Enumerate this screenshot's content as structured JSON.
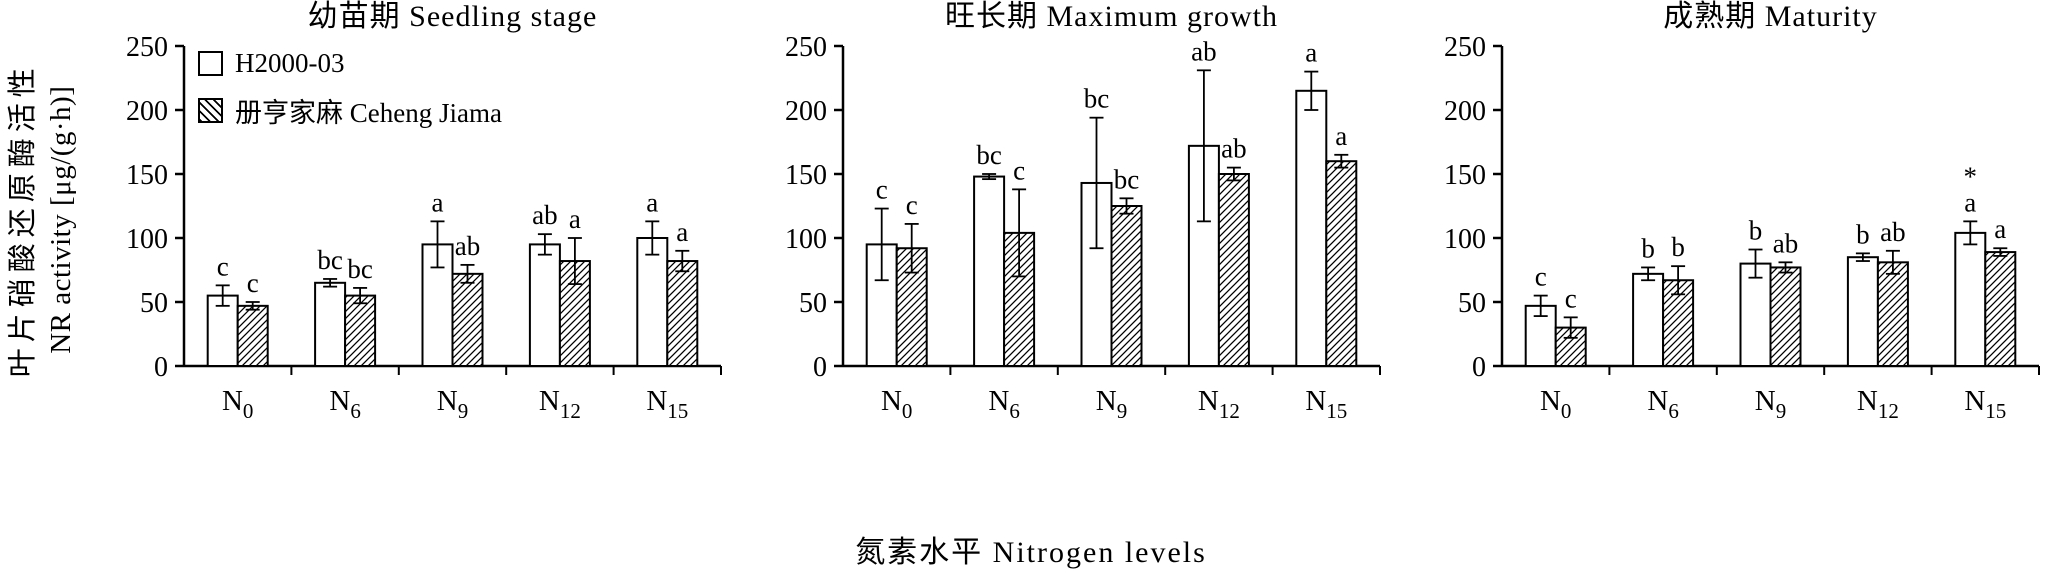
{
  "figure": {
    "y_axis_label_cn": "叶片硝酸还原酶活性",
    "y_axis_label_en": "NR activity [μg/(g·h)]",
    "x_axis_label": "氮素水平 Nitrogen levels",
    "colors": {
      "foreground": "#000000",
      "background": "#ffffff"
    }
  },
  "legend": {
    "position": "top-left-first-panel",
    "items": [
      {
        "label": "H2000-03",
        "style": "open"
      },
      {
        "label": "册亨家麻 Ceheng Jiama",
        "style": "hatched"
      }
    ]
  },
  "chart_data": [
    {
      "type": "bar",
      "title": "幼苗期 Seedling stage",
      "categories": [
        {
          "base": "N",
          "sub": "0"
        },
        {
          "base": "N",
          "sub": "6"
        },
        {
          "base": "N",
          "sub": "9"
        },
        {
          "base": "N",
          "sub": "12"
        },
        {
          "base": "N",
          "sub": "15"
        }
      ],
      "ylim": [
        0,
        250
      ],
      "yticks": [
        0,
        50,
        100,
        150,
        200,
        250
      ],
      "grid": false,
      "series": [
        {
          "name": "H2000-03",
          "style": "open",
          "values": [
            55,
            65,
            95,
            95,
            100
          ],
          "errors": [
            8,
            3,
            18,
            8,
            13
          ],
          "sig_labels": [
            "c",
            "bc",
            "a",
            "ab",
            "a"
          ]
        },
        {
          "name": "册亨家麻 Ceheng Jiama",
          "style": "hatched",
          "values": [
            47,
            55,
            72,
            82,
            82
          ],
          "errors": [
            3,
            6,
            7,
            18,
            8
          ],
          "sig_labels": [
            "c",
            "bc",
            "ab",
            "a",
            "a"
          ]
        }
      ]
    },
    {
      "type": "bar",
      "title": "旺长期 Maximum growth",
      "categories": [
        {
          "base": "N",
          "sub": "0"
        },
        {
          "base": "N",
          "sub": "6"
        },
        {
          "base": "N",
          "sub": "9"
        },
        {
          "base": "N",
          "sub": "12"
        },
        {
          "base": "N",
          "sub": "15"
        }
      ],
      "ylim": [
        0,
        250
      ],
      "yticks": [
        0,
        50,
        100,
        150,
        200,
        250
      ],
      "grid": false,
      "series": [
        {
          "name": "H2000-03",
          "style": "open",
          "values": [
            95,
            148,
            143,
            172,
            215
          ],
          "errors": [
            28,
            2,
            51,
            59,
            15
          ],
          "sig_labels": [
            "c",
            "bc",
            "bc",
            "ab",
            "*\na"
          ]
        },
        {
          "name": "册亨家麻 Ceheng Jiama",
          "style": "hatched",
          "values": [
            92,
            104,
            125,
            150,
            160
          ],
          "errors": [
            19,
            34,
            6,
            5,
            5
          ],
          "sig_labels": [
            "c",
            "c",
            "bc",
            "ab",
            "a"
          ]
        }
      ]
    },
    {
      "type": "bar",
      "title": "成熟期 Maturity",
      "categories": [
        {
          "base": "N",
          "sub": "0"
        },
        {
          "base": "N",
          "sub": "6"
        },
        {
          "base": "N",
          "sub": "9"
        },
        {
          "base": "N",
          "sub": "12"
        },
        {
          "base": "N",
          "sub": "15"
        }
      ],
      "ylim": [
        0,
        250
      ],
      "yticks": [
        0,
        50,
        100,
        150,
        200,
        250
      ],
      "grid": false,
      "series": [
        {
          "name": "H2000-03",
          "style": "open",
          "values": [
            47,
            72,
            80,
            85,
            104
          ],
          "errors": [
            8,
            5,
            11,
            3,
            9
          ],
          "sig_labels": [
            "c",
            "b",
            "b",
            "b",
            "*\na"
          ]
        },
        {
          "name": "册亨家麻 Ceheng Jiama",
          "style": "hatched",
          "values": [
            30,
            67,
            77,
            81,
            89
          ],
          "errors": [
            8,
            11,
            4,
            9,
            3
          ],
          "sig_labels": [
            "c",
            "b",
            "ab",
            "ab",
            "a"
          ]
        }
      ]
    }
  ]
}
